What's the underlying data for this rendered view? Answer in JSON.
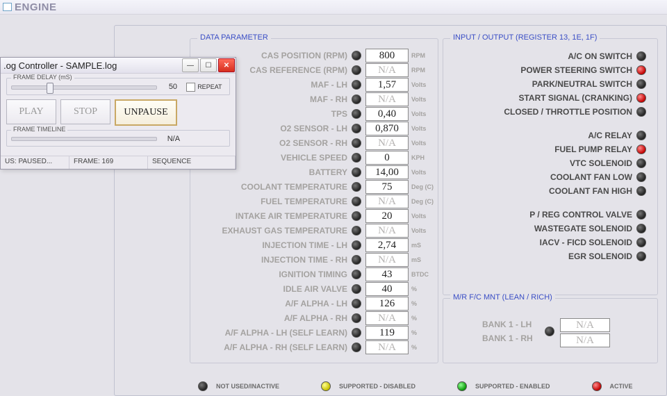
{
  "engine_title": "ENGINE",
  "data_param": {
    "title": "DATA PARAMETER",
    "rows": [
      {
        "label": "CAS POSITION (RPM)",
        "value": "800",
        "na": false,
        "unit": "RPM"
      },
      {
        "label": "CAS REFERENCE (RPM)",
        "value": "N/A",
        "na": true,
        "unit": "RPM"
      },
      {
        "label": "MAF - LH",
        "value": "1,57",
        "na": false,
        "unit": "Volts"
      },
      {
        "label": "MAF - RH",
        "value": "N/A",
        "na": true,
        "unit": "Volts"
      },
      {
        "label": "TPS",
        "value": "0,40",
        "na": false,
        "unit": "Volts"
      },
      {
        "label": "O2 SENSOR - LH",
        "value": "0,870",
        "na": false,
        "unit": "Volts"
      },
      {
        "label": "O2 SENSOR - RH",
        "value": "N/A",
        "na": true,
        "unit": "Volts"
      },
      {
        "label": "VEHICLE SPEED",
        "value": "0",
        "na": false,
        "unit": "KPH"
      },
      {
        "label": "BATTERY",
        "value": "14,00",
        "na": false,
        "unit": "Volts"
      },
      {
        "label": "COOLANT TEMPERATURE",
        "value": "75",
        "na": false,
        "unit": "Deg (C)"
      },
      {
        "label": "FUEL TEMPERATURE",
        "value": "N/A",
        "na": true,
        "unit": "Deg (C)"
      },
      {
        "label": "INTAKE AIR TEMPERATURE",
        "value": "20",
        "na": false,
        "unit": "Volts"
      },
      {
        "label": "EXHAUST GAS TEMPERATURE",
        "value": "N/A",
        "na": true,
        "unit": "Volts"
      },
      {
        "label": "INJECTION TIME - LH",
        "value": "2,74",
        "na": false,
        "unit": "mS"
      },
      {
        "label": "INJECTION TIME - RH",
        "value": "N/A",
        "na": true,
        "unit": "mS"
      },
      {
        "label": "IGNITION TIMING",
        "value": "43",
        "na": false,
        "unit": "BTDC"
      },
      {
        "label": "IDLE AIR VALVE",
        "value": "40",
        "na": false,
        "unit": "%"
      },
      {
        "label": "A/F ALPHA - LH",
        "value": "126",
        "na": false,
        "unit": "%"
      },
      {
        "label": "A/F ALPHA - RH",
        "value": "N/A",
        "na": true,
        "unit": "%"
      },
      {
        "label": "A/F ALPHA - LH (SELF LEARN)",
        "value": "119",
        "na": false,
        "unit": "%"
      },
      {
        "label": "A/F ALPHA - RH (SELF LEARN)",
        "value": "N/A",
        "na": true,
        "unit": "%"
      }
    ]
  },
  "io": {
    "title": "INPUT / OUTPUT (REGISTER 13, 1E, 1F)",
    "groups": [
      [
        {
          "label": "A/C ON SWITCH",
          "color": "black"
        },
        {
          "label": "POWER STEERING SWITCH",
          "color": "red"
        },
        {
          "label": "PARK/NEUTRAL SWITCH",
          "color": "black"
        },
        {
          "label": "START SIGNAL (CRANKING)",
          "color": "red"
        },
        {
          "label": "CLOSED / THROTTLE POSITION",
          "color": "black"
        }
      ],
      [
        {
          "label": "A/C RELAY",
          "color": "black"
        },
        {
          "label": "FUEL PUMP RELAY",
          "color": "red"
        },
        {
          "label": "VTC SOLENOID",
          "color": "black"
        },
        {
          "label": "COOLANT FAN LOW",
          "color": "black"
        },
        {
          "label": "COOLANT FAN HIGH",
          "color": "black"
        }
      ],
      [
        {
          "label": "P / REG CONTROL VALVE",
          "color": "black"
        },
        {
          "label": "WASTEGATE SOLENOID",
          "color": "black"
        },
        {
          "label": "IACV - FICD SOLENOID",
          "color": "black"
        },
        {
          "label": "EGR SOLENOID",
          "color": "black"
        }
      ]
    ]
  },
  "mr": {
    "title": "M/R F/C MNT (LEAN / RICH)",
    "bank1_lh_label": "BANK 1 - LH",
    "bank1_rh_label": "BANK 1 - RH",
    "bank1_lh_value": "N/A",
    "bank1_rh_value": "N/A"
  },
  "legend": {
    "not_used": "NOT USED/INACTIVE",
    "disabled": "SUPPORTED - DISABLED",
    "enabled": "SUPPORTED - ENABLED",
    "active": "ACTIVE"
  },
  "log_controller": {
    "title": ".og Controller - SAMPLE.log",
    "frame_delay_label": "FRAME DELAY (mS)",
    "frame_delay_value": "50",
    "repeat_label": "REPEAT",
    "play_label": "PLAY",
    "stop_label": "STOP",
    "unpause_label": "UNPAUSE",
    "frame_timeline_label": "FRAME TIMELINE",
    "timeline_value": "N/A",
    "status_paused": "US: PAUSED...",
    "status_frame": "FRAME:  169",
    "status_sequence": "SEQUENCE"
  },
  "colors": {
    "panel_bg": "#e4e3e9",
    "group_label": "#3a4ec5",
    "text_dim": "#a4a2a0"
  }
}
